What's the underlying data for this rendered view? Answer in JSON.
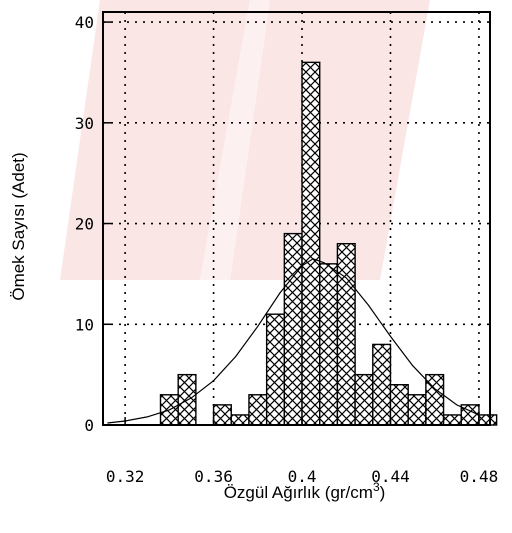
{
  "chart_data": {
    "type": "bar",
    "title": "",
    "xlabel_main": "Özgül Ağırlık (gr/cm",
    "xlabel_sup": "3",
    "xlabel_close": ")",
    "ylabel": "Ömek Sayısı (Adet)",
    "xlim": [
      0.31,
      0.485
    ],
    "ylim": [
      0,
      41
    ],
    "xticks": [
      "0.32",
      "0.36",
      "0.4",
      "0.44",
      "0.48"
    ],
    "xtick_values": [
      0.32,
      0.36,
      0.4,
      0.44,
      0.48
    ],
    "yticks": [
      "0",
      "10",
      "20",
      "30",
      "40"
    ],
    "ytick_values": [
      0,
      10,
      20,
      30,
      40
    ],
    "grid": true,
    "bin_width": 0.008,
    "bars": [
      {
        "x": 0.332,
        "y": 0
      },
      {
        "x": 0.34,
        "y": 3
      },
      {
        "x": 0.348,
        "y": 5
      },
      {
        "x": 0.356,
        "y": 0
      },
      {
        "x": 0.364,
        "y": 2
      },
      {
        "x": 0.372,
        "y": 1
      },
      {
        "x": 0.38,
        "y": 3
      },
      {
        "x": 0.388,
        "y": 11
      },
      {
        "x": 0.396,
        "y": 19
      },
      {
        "x": 0.404,
        "y": 36
      },
      {
        "x": 0.412,
        "y": 16
      },
      {
        "x": 0.42,
        "y": 18
      },
      {
        "x": 0.428,
        "y": 5
      },
      {
        "x": 0.436,
        "y": 8
      },
      {
        "x": 0.444,
        "y": 4
      },
      {
        "x": 0.452,
        "y": 3
      },
      {
        "x": 0.46,
        "y": 5
      },
      {
        "x": 0.468,
        "y": 1
      },
      {
        "x": 0.476,
        "y": 2
      },
      {
        "x": 0.484,
        "y": 1
      }
    ],
    "curve": {
      "type": "normal-fit",
      "points": [
        [
          0.312,
          0.2
        ],
        [
          0.32,
          0.4
        ],
        [
          0.33,
          0.8
        ],
        [
          0.34,
          1.5
        ],
        [
          0.35,
          2.7
        ],
        [
          0.36,
          4.4
        ],
        [
          0.37,
          6.8
        ],
        [
          0.38,
          9.8
        ],
        [
          0.39,
          13.1
        ],
        [
          0.4,
          15.8
        ],
        [
          0.405,
          16.5
        ],
        [
          0.41,
          16.1
        ],
        [
          0.42,
          14.6
        ],
        [
          0.43,
          11.9
        ],
        [
          0.44,
          8.8
        ],
        [
          0.45,
          5.9
        ],
        [
          0.46,
          3.6
        ],
        [
          0.47,
          2.0
        ],
        [
          0.48,
          1.0
        ]
      ]
    },
    "colors": {
      "bar_fill": "#ffffff",
      "hatch": "#000000",
      "curve": "#000000",
      "watermark": "#fbe6e6"
    }
  }
}
